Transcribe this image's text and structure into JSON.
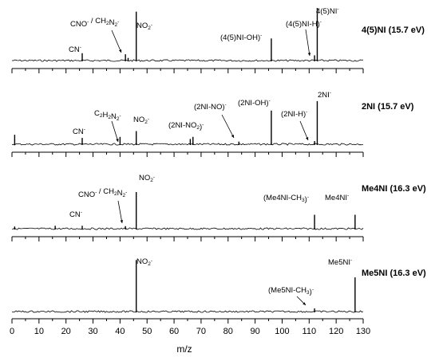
{
  "chart_data": {
    "type": "line",
    "xlabel": "m/z",
    "xlim": [
      0,
      130
    ],
    "x_ticks": [
      "0",
      "10",
      "20",
      "30",
      "40",
      "50",
      "60",
      "70",
      "80",
      "90",
      "100",
      "110",
      "120",
      "130"
    ],
    "panels": [
      {
        "title": "4(5)NI (15.7 eV)",
        "peaks": [
          {
            "x": 26,
            "y": 0.14
          },
          {
            "x": 42,
            "y": 0.12
          },
          {
            "x": 43,
            "y": 0.05
          },
          {
            "x": 46,
            "y": 0.93
          },
          {
            "x": 96,
            "y": 0.42
          },
          {
            "x": 112,
            "y": 0.1
          },
          {
            "x": 113,
            "y": 1.0
          }
        ],
        "labels": [
          {
            "parts": [
              {
                "t": "CN"
              },
              {
                "t": "-",
                "sup": true
              }
            ]
          },
          {
            "parts": [
              {
                "t": "CNO"
              },
              {
                "t": "-",
                "sup": true
              },
              {
                "t": " / CH"
              },
              {
                "t": "2",
                "sub": true
              },
              {
                "t": "N"
              },
              {
                "t": "2",
                "sub": true
              },
              {
                "t": "-",
                "sup": true
              }
            ]
          },
          {
            "parts": [
              {
                "t": "NO"
              },
              {
                "t": "2",
                "sub": true
              },
              {
                "t": "-",
                "sup": true
              }
            ]
          },
          {
            "parts": [
              {
                "t": "(4(5)NI-OH)"
              },
              {
                "t": "-",
                "sup": true
              }
            ]
          },
          {
            "parts": [
              {
                "t": "(4(5)NI-H)"
              },
              {
                "t": "-",
                "sup": true
              }
            ]
          },
          {
            "parts": [
              {
                "t": "4(5)NI"
              },
              {
                "t": "-",
                "sup": true
              }
            ]
          }
        ]
      },
      {
        "title": "2NI (15.7 eV)",
        "peaks": [
          {
            "x": 1,
            "y": 0.18
          },
          {
            "x": 26,
            "y": 0.12
          },
          {
            "x": 40,
            "y": 0.14
          },
          {
            "x": 46,
            "y": 0.25
          },
          {
            "x": 66,
            "y": 0.1
          },
          {
            "x": 67,
            "y": 0.14
          },
          {
            "x": 84,
            "y": 0.05
          },
          {
            "x": 96,
            "y": 0.64
          },
          {
            "x": 112,
            "y": 0.06
          },
          {
            "x": 113,
            "y": 0.82
          }
        ],
        "labels": [
          {
            "parts": [
              {
                "t": "CN"
              },
              {
                "t": "-",
                "sup": true
              }
            ]
          },
          {
            "parts": [
              {
                "t": "C"
              },
              {
                "t": "2",
                "sub": true
              },
              {
                "t": "H"
              },
              {
                "t": "2",
                "sub": true
              },
              {
                "t": "N"
              },
              {
                "t": "2",
                "sub": true
              },
              {
                "t": "-",
                "sup": true
              }
            ]
          },
          {
            "parts": [
              {
                "t": "NO"
              },
              {
                "t": "2",
                "sub": true
              },
              {
                "t": "-",
                "sup": true
              }
            ]
          },
          {
            "parts": [
              {
                "t": "(2NI-NO"
              },
              {
                "t": "2",
                "sub": true
              },
              {
                "t": ")"
              },
              {
                "t": "-",
                "sup": true
              }
            ]
          },
          {
            "parts": [
              {
                "t": "(2NI-NO)"
              },
              {
                "t": "-",
                "sup": true
              }
            ]
          },
          {
            "parts": [
              {
                "t": "(2NI-OH)"
              },
              {
                "t": "-",
                "sup": true
              }
            ]
          },
          {
            "parts": [
              {
                "t": "(2NI-H)"
              },
              {
                "t": "-",
                "sup": true
              }
            ]
          },
          {
            "parts": [
              {
                "t": "2NI"
              },
              {
                "t": "-",
                "sup": true
              }
            ]
          }
        ]
      },
      {
        "title": "Me4NI (16.3 eV)",
        "peaks": [
          {
            "x": 1,
            "y": 0.06
          },
          {
            "x": 16,
            "y": 0.08
          },
          {
            "x": 26,
            "y": 0.08
          },
          {
            "x": 42,
            "y": 0.07
          },
          {
            "x": 46,
            "y": 1.0
          },
          {
            "x": 112,
            "y": 0.38
          },
          {
            "x": 127,
            "y": 0.38
          }
        ],
        "labels": [
          {
            "parts": [
              {
                "t": "CN"
              },
              {
                "t": "-",
                "sup": true
              }
            ]
          },
          {
            "parts": [
              {
                "t": "CNO"
              },
              {
                "t": "-",
                "sup": true
              },
              {
                "t": " / CH"
              },
              {
                "t": "2",
                "sub": true
              },
              {
                "t": "N"
              },
              {
                "t": "2",
                "sub": true
              },
              {
                "t": "-",
                "sup": true
              }
            ]
          },
          {
            "parts": [
              {
                "t": "NO"
              },
              {
                "t": "2",
                "sub": true
              },
              {
                "t": "-",
                "sup": true
              }
            ]
          },
          {
            "parts": [
              {
                "t": "(Me4NI-CH"
              },
              {
                "t": "3",
                "sub": true
              },
              {
                "t": ")"
              },
              {
                "t": "-",
                "sup": true
              }
            ]
          },
          {
            "parts": [
              {
                "t": "Me4NI"
              },
              {
                "t": "-",
                "sup": true
              }
            ]
          }
        ]
      },
      {
        "title": "Me5NI (16.3 eV)",
        "peaks": [
          {
            "x": 46,
            "y": 0.98
          },
          {
            "x": 112,
            "y": 0.06
          },
          {
            "x": 127,
            "y": 0.65
          }
        ],
        "labels": [
          {
            "parts": [
              {
                "t": "NO"
              },
              {
                "t": "2",
                "sub": true
              },
              {
                "t": "-",
                "sup": true
              }
            ]
          },
          {
            "parts": [
              {
                "t": "(Me5NI-CH"
              },
              {
                "t": "3",
                "sub": true
              },
              {
                "t": ")"
              },
              {
                "t": "-",
                "sup": true
              }
            ]
          },
          {
            "parts": [
              {
                "t": "Me5NI"
              },
              {
                "t": "-",
                "sup": true
              }
            ]
          }
        ]
      }
    ]
  }
}
